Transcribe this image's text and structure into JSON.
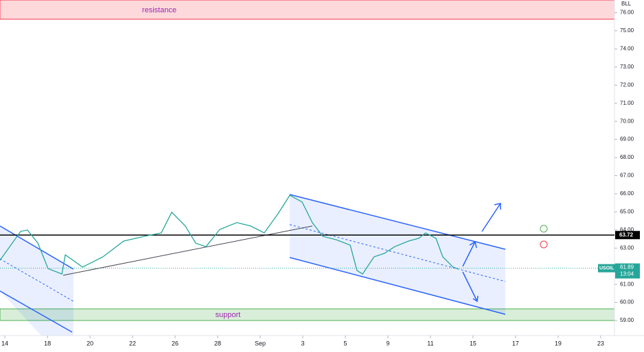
{
  "chart_data": {
    "type": "line",
    "symbol": "USOIL",
    "axis_header": "BLL",
    "series": [
      {
        "name": "USOIL",
        "color": "#26a69a",
        "x": [
          -0.23,
          0.74,
          1.06,
          1.55,
          2.03,
          2.68,
          2.84,
          3.65,
          4.61,
          5.58,
          6.55,
          7.35,
          7.84,
          8.48,
          8.97,
          9.45,
          10.1,
          10.9,
          11.55,
          12.19,
          12.84,
          13.39,
          13.97,
          14.45,
          14.94,
          15.58,
          16.23,
          16.55,
          16.81,
          17.35,
          17.84,
          18.32,
          18.97,
          19.45,
          19.77,
          20.26,
          20.58,
          21.06,
          21.32
        ],
        "values": [
          62.33,
          63.92,
          64.0,
          63.27,
          61.87,
          61.57,
          62.63,
          61.95,
          62.52,
          63.39,
          63.65,
          63.84,
          64.98,
          64.22,
          63.27,
          63.08,
          64.03,
          64.41,
          64.22,
          63.84,
          64.9,
          65.92,
          65.54,
          64.41,
          63.65,
          63.46,
          63.16,
          61.76,
          61.57,
          62.52,
          62.71,
          63.08,
          63.39,
          63.54,
          63.84,
          63.54,
          62.52,
          61.95,
          61.84
        ]
      }
    ],
    "last_price": 61.89,
    "countdown": "13:04",
    "level_line": 63.72,
    "annotations": [
      "resistance",
      "support"
    ],
    "xlim": [
      -0.23,
      28.65
    ],
    "ylim": [
      58.17,
      76.7
    ],
    "xticks": [
      {
        "value": 0,
        "label": "14"
      },
      {
        "value": 2,
        "label": "18"
      },
      {
        "value": 4,
        "label": "20"
      },
      {
        "value": 6,
        "label": "22"
      },
      {
        "value": 8,
        "label": "26"
      },
      {
        "value": 10,
        "label": "28"
      },
      {
        "value": 12,
        "label": "Sep"
      },
      {
        "value": 14,
        "label": "3"
      },
      {
        "value": 16,
        "label": "5"
      },
      {
        "value": 18,
        "label": "9"
      },
      {
        "value": 20,
        "label": "11"
      },
      {
        "value": 22,
        "label": "15"
      },
      {
        "value": 24,
        "label": "17"
      },
      {
        "value": 26,
        "label": "19"
      },
      {
        "value": 28,
        "label": "23"
      }
    ],
    "yticks": [
      {
        "value": 59,
        "label": "59.00"
      },
      {
        "value": 60,
        "label": "60.00"
      },
      {
        "value": 61,
        "label": "61.00"
      },
      {
        "value": 62,
        "label": "62.00"
      },
      {
        "value": 63,
        "label": "63.00"
      },
      {
        "value": 64,
        "label": "64.00"
      },
      {
        "value": 65,
        "label": "65.00"
      },
      {
        "value": 66,
        "label": "66.00"
      },
      {
        "value": 67,
        "label": "67.00"
      },
      {
        "value": 68,
        "label": "68.00"
      },
      {
        "value": 69,
        "label": "69.00"
      },
      {
        "value": 70,
        "label": "70.00"
      },
      {
        "value": 71,
        "label": "71.00"
      },
      {
        "value": 72,
        "label": "72.00"
      },
      {
        "value": 73,
        "label": "73.00"
      },
      {
        "value": 74,
        "label": "74.00"
      },
      {
        "value": 75,
        "label": "75.00"
      },
      {
        "value": 76,
        "label": "76.00"
      }
    ]
  }
}
